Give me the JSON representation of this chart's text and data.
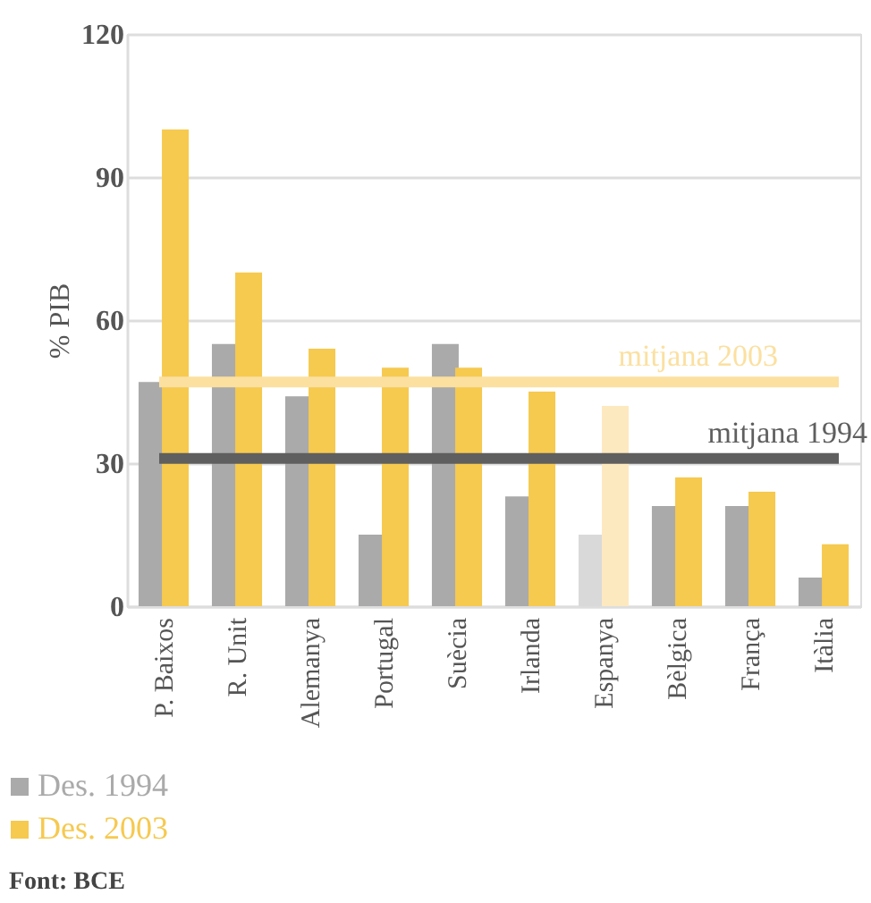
{
  "chart_data": {
    "type": "bar",
    "ylabel": "% PIB",
    "categories": [
      "P. Baixos",
      "R. Unit",
      "Alemanya",
      "Portugal",
      "Suècia",
      "Irlanda",
      "Espanya",
      "Bèlgica",
      "França",
      "Itàlia"
    ],
    "series": [
      {
        "name": "Des. 1994",
        "color": "#aaaaaa",
        "colors": [
          "#aaaaaa",
          "#aaaaaa",
          "#aaaaaa",
          "#aaaaaa",
          "#aaaaaa",
          "#aaaaaa",
          "#d9d9d9",
          "#aaaaaa",
          "#aaaaaa",
          "#aaaaaa"
        ],
        "values": [
          47,
          55,
          44,
          15,
          55,
          23,
          15,
          21,
          21,
          6
        ]
      },
      {
        "name": "Des. 2003",
        "color": "#f6c94f",
        "colors": [
          "#f6c94f",
          "#f6c94f",
          "#f6c94f",
          "#f6c94f",
          "#f6c94f",
          "#f6c94f",
          "#fde9c0",
          "#f6c94f",
          "#f6c94f",
          "#f6c94f"
        ],
        "values": [
          100,
          70,
          54,
          50,
          50,
          45,
          42,
          27,
          24,
          13
        ]
      }
    ],
    "ylim": [
      0,
      120
    ],
    "yticks": [
      0,
      30,
      60,
      90,
      120
    ],
    "grid": "y",
    "legend": "bottom left",
    "ref_lines": [
      {
        "axis": "y",
        "value": 47,
        "label": "mitjana 2003",
        "color": "#fbe0a0"
      },
      {
        "axis": "y",
        "value": 31,
        "label": "mitjana 1994",
        "color": "#5f5f5f"
      }
    ],
    "annotations": [
      "Font: BCE"
    ]
  }
}
